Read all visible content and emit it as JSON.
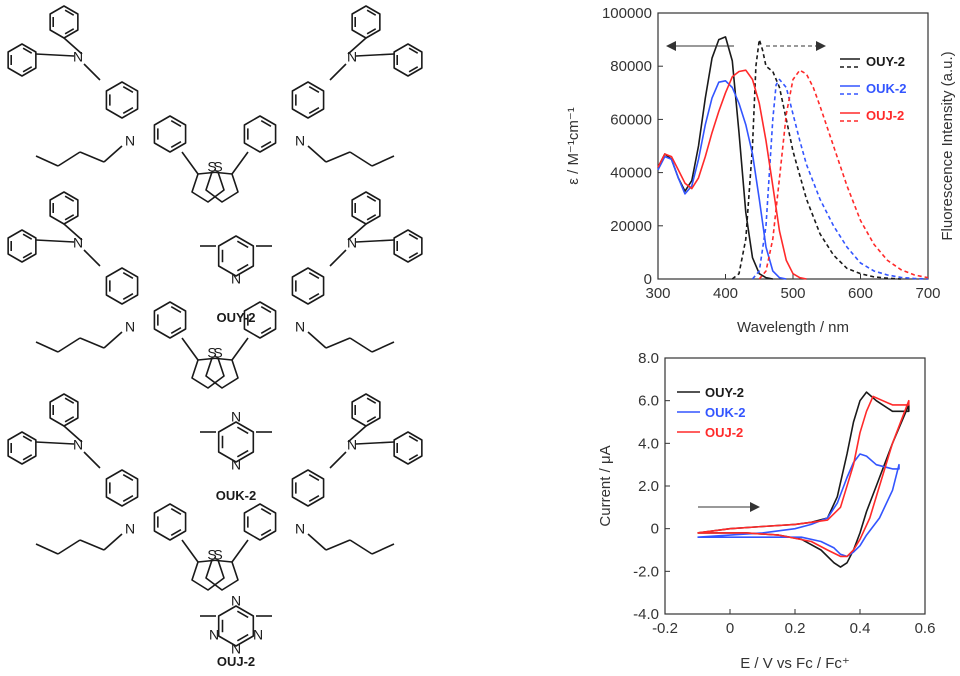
{
  "compounds": [
    {
      "name": "OUY-2",
      "core_atom": "N",
      "color": "#1a1a1a"
    },
    {
      "name": "OUK-2",
      "core_atom": "N",
      "color": "#2233ee"
    },
    {
      "name": "OUJ-2",
      "core_atom": "N",
      "color": "#ee2222"
    }
  ],
  "atoms": {
    "nitrogen": "N",
    "sulfur": "S"
  },
  "chart_data": [
    {
      "type": "line",
      "xlabel": "Wavelength / nm",
      "ylabel": "ε / M⁻¹cm⁻¹",
      "ylabel_right": "Fluorescence Intensity (a.u.)",
      "xlim": [
        300,
        700
      ],
      "ylim": [
        0,
        100000
      ],
      "x_ticks": [
        "300",
        "400",
        "500",
        "600",
        "700"
      ],
      "y_ticks": [
        "0",
        "20000",
        "40000",
        "60000",
        "80000",
        "100000"
      ],
      "legend_position": "top-right",
      "series": [
        {
          "name": "OUY-2",
          "kind": "absorption",
          "color": "#1a1a1a",
          "dashed": false,
          "x": [
            300,
            310,
            320,
            330,
            340,
            350,
            360,
            370,
            380,
            390,
            400,
            410,
            420,
            430,
            440,
            450,
            460,
            470
          ],
          "y": [
            42000,
            47000,
            45000,
            38000,
            33000,
            37000,
            50000,
            68000,
            83000,
            90000,
            91000,
            82000,
            55000,
            25000,
            8000,
            2000,
            500,
            0
          ]
        },
        {
          "name": "OUY-2",
          "kind": "fluorescence",
          "color": "#1a1a1a",
          "dashed": true,
          "x": [
            410,
            420,
            430,
            440,
            445,
            450,
            455,
            460,
            470,
            480,
            490,
            500,
            520,
            540,
            560,
            580,
            600,
            620,
            640,
            660
          ],
          "y": [
            0,
            2000,
            15000,
            50000,
            80000,
            90000,
            86000,
            80000,
            78000,
            72000,
            60000,
            48000,
            30000,
            17000,
            9000,
            4000,
            2000,
            800,
            300,
            0
          ]
        },
        {
          "name": "OUK-2",
          "kind": "absorption",
          "color": "#3355ff",
          "dashed": false,
          "x": [
            300,
            310,
            320,
            330,
            340,
            350,
            360,
            370,
            380,
            390,
            400,
            410,
            420,
            430,
            440,
            450,
            460,
            470,
            480,
            490
          ],
          "y": [
            41000,
            46000,
            45000,
            38000,
            32000,
            35000,
            45000,
            58000,
            68000,
            74000,
            74500,
            72000,
            66000,
            58000,
            47000,
            30000,
            12000,
            3000,
            500,
            0
          ]
        },
        {
          "name": "OUK-2",
          "kind": "fluorescence",
          "color": "#3355ff",
          "dashed": true,
          "x": [
            440,
            450,
            460,
            470,
            475,
            480,
            490,
            500,
            510,
            520,
            540,
            560,
            580,
            600,
            620,
            640,
            660,
            680,
            700
          ],
          "y": [
            0,
            3000,
            20000,
            60000,
            73000,
            75000,
            72000,
            62000,
            52000,
            43000,
            30000,
            20000,
            12000,
            6000,
            3000,
            1500,
            600,
            200,
            0
          ]
        },
        {
          "name": "OUJ-2",
          "kind": "absorption",
          "color": "#ff2a2a",
          "dashed": false,
          "x": [
            300,
            310,
            320,
            330,
            340,
            350,
            360,
            370,
            380,
            390,
            400,
            410,
            420,
            430,
            440,
            450,
            460,
            470,
            480,
            490,
            500,
            510,
            520
          ],
          "y": [
            42000,
            47000,
            46000,
            41000,
            36000,
            34000,
            38000,
            46000,
            55000,
            63000,
            70000,
            76000,
            78000,
            78500,
            75000,
            66000,
            52000,
            35000,
            18000,
            7000,
            2000,
            500,
            0
          ]
        },
        {
          "name": "OUJ-2",
          "kind": "fluorescence",
          "color": "#ff2a2a",
          "dashed": true,
          "x": [
            450,
            460,
            470,
            480,
            490,
            500,
            510,
            520,
            530,
            540,
            560,
            580,
            600,
            620,
            640,
            660,
            680,
            700
          ],
          "y": [
            0,
            3000,
            15000,
            38000,
            62000,
            75000,
            78500,
            77000,
            72000,
            65000,
            50000,
            35000,
            22000,
            13000,
            7000,
            3500,
            1500,
            500
          ]
        }
      ]
    },
    {
      "type": "line",
      "xlabel": "E / V vs  Fc / Fc⁺",
      "ylabel": "Current / μA",
      "xlim": [
        -0.2,
        0.6
      ],
      "ylim": [
        -4.0,
        8.0
      ],
      "x_ticks": [
        "-0.2",
        "0",
        "0.2",
        "0.4",
        "0.6"
      ],
      "y_ticks": [
        "-4.0",
        "-2.0",
        "0",
        "2.0",
        "4.0",
        "6.0",
        "8.0"
      ],
      "legend_position": "top-left",
      "scan_arrow": "forward (left to right)",
      "series": [
        {
          "name": "OUY-2",
          "color": "#1a1a1a",
          "x": [
            -0.1,
            0.0,
            0.1,
            0.2,
            0.25,
            0.3,
            0.33,
            0.36,
            0.38,
            0.4,
            0.42,
            0.45,
            0.5,
            0.55,
            0.55,
            0.5,
            0.45,
            0.42,
            0.4,
            0.38,
            0.36,
            0.34,
            0.32,
            0.28,
            0.22,
            0.15,
            0.05,
            -0.05,
            -0.1
          ],
          "y": [
            -0.2,
            0.0,
            0.1,
            0.2,
            0.3,
            0.5,
            1.5,
            3.5,
            5.0,
            6.0,
            6.4,
            6.0,
            5.5,
            5.5,
            5.8,
            4.0,
            2.0,
            0.8,
            -0.2,
            -1.0,
            -1.6,
            -1.8,
            -1.6,
            -1.0,
            -0.5,
            -0.3,
            -0.2,
            -0.2,
            -0.2
          ]
        },
        {
          "name": "OUK-2",
          "color": "#3355ff",
          "x": [
            -0.1,
            0.0,
            0.1,
            0.2,
            0.25,
            0.3,
            0.33,
            0.36,
            0.38,
            0.4,
            0.42,
            0.45,
            0.5,
            0.52,
            0.52,
            0.5,
            0.46,
            0.42,
            0.4,
            0.38,
            0.36,
            0.34,
            0.32,
            0.28,
            0.22,
            0.15,
            0.05,
            -0.05,
            -0.1
          ],
          "y": [
            -0.4,
            -0.3,
            -0.2,
            0.0,
            0.2,
            0.5,
            1.2,
            2.4,
            3.1,
            3.5,
            3.4,
            3.0,
            2.8,
            2.8,
            3.0,
            1.8,
            0.5,
            -0.3,
            -0.8,
            -1.1,
            -1.3,
            -1.2,
            -0.9,
            -0.6,
            -0.4,
            -0.4,
            -0.4,
            -0.4,
            -0.4
          ]
        },
        {
          "name": "OUJ-2",
          "color": "#ff2a2a",
          "x": [
            -0.1,
            0.0,
            0.1,
            0.2,
            0.25,
            0.3,
            0.34,
            0.38,
            0.4,
            0.42,
            0.44,
            0.47,
            0.5,
            0.55,
            0.55,
            0.5,
            0.46,
            0.43,
            0.4,
            0.38,
            0.36,
            0.34,
            0.3,
            0.25,
            0.15,
            0.05,
            -0.05,
            -0.1
          ],
          "y": [
            -0.2,
            0.0,
            0.1,
            0.2,
            0.3,
            0.4,
            1.0,
            3.0,
            4.5,
            5.5,
            6.2,
            6.0,
            5.8,
            5.8,
            6.0,
            4.0,
            2.0,
            0.5,
            -0.5,
            -1.0,
            -1.3,
            -1.3,
            -1.0,
            -0.6,
            -0.3,
            -0.2,
            -0.2,
            -0.2
          ]
        }
      ]
    }
  ]
}
